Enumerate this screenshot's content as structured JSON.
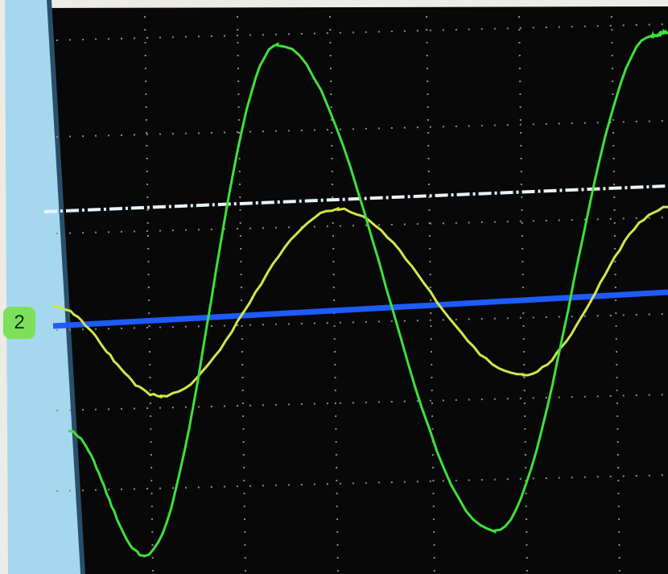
{
  "channel_marker": "2"
}
